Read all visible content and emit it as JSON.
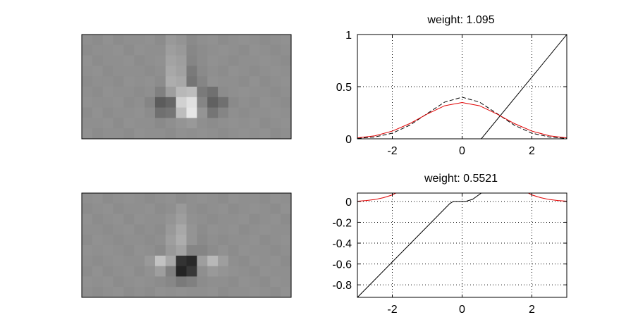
{
  "colors": {
    "red_curve": "#e00000",
    "black_curve": "#000000",
    "axes": "#000000",
    "background": "#ffffff"
  },
  "filter_images": [
    {
      "name": "filter-1",
      "rows": 10,
      "cols": 20,
      "pixels": [
        [
          0.56,
          0.55,
          0.57,
          0.55,
          0.56,
          0.56,
          0.57,
          0.55,
          0.6,
          0.58,
          0.54,
          0.56,
          0.57,
          0.55,
          0.56,
          0.57,
          0.56,
          0.55,
          0.56,
          0.57
        ],
        [
          0.55,
          0.56,
          0.56,
          0.57,
          0.55,
          0.57,
          0.56,
          0.56,
          0.62,
          0.6,
          0.53,
          0.55,
          0.56,
          0.57,
          0.56,
          0.55,
          0.57,
          0.56,
          0.55,
          0.56
        ],
        [
          0.57,
          0.55,
          0.56,
          0.56,
          0.57,
          0.55,
          0.56,
          0.57,
          0.64,
          0.62,
          0.52,
          0.55,
          0.57,
          0.56,
          0.55,
          0.56,
          0.56,
          0.57,
          0.56,
          0.55
        ],
        [
          0.56,
          0.57,
          0.55,
          0.56,
          0.56,
          0.56,
          0.55,
          0.56,
          0.66,
          0.63,
          0.48,
          0.54,
          0.56,
          0.55,
          0.57,
          0.56,
          0.55,
          0.56,
          0.57,
          0.56
        ],
        [
          0.55,
          0.56,
          0.56,
          0.55,
          0.57,
          0.56,
          0.57,
          0.55,
          0.68,
          0.66,
          0.46,
          0.52,
          0.57,
          0.56,
          0.56,
          0.55,
          0.57,
          0.55,
          0.56,
          0.57
        ],
        [
          0.56,
          0.55,
          0.57,
          0.56,
          0.56,
          0.55,
          0.56,
          0.5,
          0.62,
          0.72,
          0.74,
          0.48,
          0.44,
          0.55,
          0.56,
          0.57,
          0.56,
          0.56,
          0.55,
          0.56
        ],
        [
          0.57,
          0.56,
          0.56,
          0.57,
          0.55,
          0.56,
          0.52,
          0.36,
          0.4,
          0.82,
          0.88,
          0.52,
          0.38,
          0.44,
          0.54,
          0.56,
          0.55,
          0.57,
          0.56,
          0.55
        ],
        [
          0.55,
          0.57,
          0.55,
          0.56,
          0.56,
          0.57,
          0.55,
          0.44,
          0.46,
          0.74,
          0.9,
          0.58,
          0.46,
          0.52,
          0.56,
          0.55,
          0.56,
          0.56,
          0.57,
          0.56
        ],
        [
          0.56,
          0.56,
          0.57,
          0.55,
          0.57,
          0.56,
          0.56,
          0.54,
          0.56,
          0.58,
          0.6,
          0.56,
          0.55,
          0.56,
          0.57,
          0.56,
          0.57,
          0.55,
          0.56,
          0.57
        ],
        [
          0.57,
          0.55,
          0.56,
          0.56,
          0.55,
          0.57,
          0.56,
          0.56,
          0.55,
          0.57,
          0.56,
          0.57,
          0.56,
          0.55,
          0.56,
          0.57,
          0.56,
          0.57,
          0.55,
          0.56
        ]
      ]
    },
    {
      "name": "filter-2",
      "rows": 10,
      "cols": 20,
      "pixels": [
        [
          0.56,
          0.57,
          0.55,
          0.56,
          0.57,
          0.56,
          0.55,
          0.56,
          0.57,
          0.55,
          0.56,
          0.57,
          0.56,
          0.55,
          0.57,
          0.56,
          0.56,
          0.55,
          0.57,
          0.56
        ],
        [
          0.55,
          0.56,
          0.57,
          0.55,
          0.56,
          0.56,
          0.57,
          0.55,
          0.56,
          0.6,
          0.56,
          0.55,
          0.56,
          0.57,
          0.55,
          0.56,
          0.57,
          0.56,
          0.55,
          0.57
        ],
        [
          0.57,
          0.55,
          0.56,
          0.57,
          0.55,
          0.57,
          0.56,
          0.56,
          0.58,
          0.62,
          0.57,
          0.56,
          0.55,
          0.56,
          0.56,
          0.57,
          0.55,
          0.56,
          0.57,
          0.55
        ],
        [
          0.56,
          0.56,
          0.55,
          0.56,
          0.57,
          0.55,
          0.56,
          0.55,
          0.6,
          0.66,
          0.58,
          0.55,
          0.57,
          0.56,
          0.57,
          0.55,
          0.56,
          0.57,
          0.56,
          0.56
        ],
        [
          0.55,
          0.57,
          0.56,
          0.55,
          0.56,
          0.56,
          0.55,
          0.56,
          0.62,
          0.68,
          0.58,
          0.54,
          0.56,
          0.55,
          0.56,
          0.56,
          0.57,
          0.55,
          0.56,
          0.57
        ],
        [
          0.57,
          0.56,
          0.57,
          0.56,
          0.55,
          0.57,
          0.56,
          0.54,
          0.6,
          0.64,
          0.52,
          0.52,
          0.55,
          0.57,
          0.55,
          0.57,
          0.56,
          0.56,
          0.55,
          0.56
        ],
        [
          0.56,
          0.55,
          0.56,
          0.57,
          0.56,
          0.56,
          0.6,
          0.76,
          0.66,
          0.2,
          0.16,
          0.62,
          0.72,
          0.62,
          0.56,
          0.55,
          0.57,
          0.56,
          0.57,
          0.55
        ],
        [
          0.55,
          0.57,
          0.55,
          0.56,
          0.57,
          0.55,
          0.57,
          0.62,
          0.5,
          0.14,
          0.22,
          0.56,
          0.6,
          0.58,
          0.57,
          0.56,
          0.55,
          0.57,
          0.56,
          0.56
        ],
        [
          0.57,
          0.56,
          0.57,
          0.55,
          0.56,
          0.57,
          0.56,
          0.55,
          0.53,
          0.48,
          0.5,
          0.55,
          0.56,
          0.56,
          0.55,
          0.57,
          0.56,
          0.55,
          0.57,
          0.56
        ],
        [
          0.56,
          0.55,
          0.56,
          0.57,
          0.55,
          0.56,
          0.55,
          0.57,
          0.56,
          0.57,
          0.56,
          0.56,
          0.57,
          0.55,
          0.56,
          0.56,
          0.57,
          0.56,
          0.55,
          0.57
        ]
      ]
    }
  ],
  "chart_data": [
    {
      "type": "line",
      "title": "weight: 1.095",
      "xlabel": "",
      "ylabel": "",
      "xlim": [
        -3,
        3
      ],
      "ylim": [
        0,
        1
      ],
      "xticks": [
        -2,
        0,
        2
      ],
      "xtick_labels": [
        "-2",
        "0",
        "2"
      ],
      "yticks": [
        0,
        0.5,
        1
      ],
      "ytick_labels": [
        "0",
        "0.5",
        "1"
      ],
      "grid": true,
      "series": [
        {
          "style": "dashed",
          "color": "#000000",
          "x": [
            -3,
            -2.5,
            -2,
            -1.5,
            -1,
            -0.5,
            0,
            0.5,
            1,
            1.5,
            2,
            2.5,
            3
          ],
          "y": [
            0.004,
            0.018,
            0.054,
            0.13,
            0.242,
            0.352,
            0.399,
            0.352,
            0.242,
            0.13,
            0.054,
            0.018,
            0.004
          ]
        },
        {
          "style": "solid",
          "color": "#e00000",
          "x": [
            -3,
            -2.5,
            -2,
            -1.5,
            -1,
            -0.5,
            0,
            0.5,
            1,
            1.5,
            2,
            2.5,
            3
          ],
          "y": [
            0.009,
            0.029,
            0.074,
            0.146,
            0.238,
            0.317,
            0.348,
            0.317,
            0.238,
            0.146,
            0.074,
            0.029,
            0.009
          ]
        },
        {
          "style": "solid",
          "color": "#000000",
          "x": [
            0.55,
            3.0
          ],
          "y": [
            0.0,
            1.0
          ]
        }
      ]
    },
    {
      "type": "line",
      "title": "weight: 0.5521",
      "xlabel": "",
      "ylabel": "",
      "xlim": [
        -3,
        3
      ],
      "ylim": [
        -0.92,
        0.08
      ],
      "xticks": [
        -2,
        0,
        2
      ],
      "xtick_labels": [
        "-2",
        "0",
        "2"
      ],
      "yticks": [
        0,
        -0.2,
        -0.4,
        -0.6,
        -0.8
      ],
      "ytick_labels": [
        "0",
        "-0.2",
        "-0.4",
        "-0.6",
        "-0.8"
      ],
      "grid": true,
      "series": [
        {
          "style": "solid",
          "color": "#e00000",
          "x": [
            -3,
            -2.75,
            -2.5,
            -2.25,
            -2.0,
            -1.9
          ],
          "y": [
            0.002,
            0.008,
            0.018,
            0.036,
            0.062,
            0.08
          ]
        },
        {
          "style": "solid",
          "color": "#e00000",
          "x": [
            1.9,
            2.0,
            2.25,
            2.5,
            2.75,
            3.0
          ],
          "y": [
            0.08,
            0.062,
            0.036,
            0.018,
            0.008,
            0.002
          ]
        },
        {
          "style": "solid",
          "color": "#000000",
          "x": [
            -3.0,
            -0.35,
            -0.25,
            0.1,
            0.3,
            0.55
          ],
          "y": [
            -0.92,
            -0.02,
            0.0,
            0.0,
            0.02,
            0.08
          ]
        }
      ]
    }
  ]
}
